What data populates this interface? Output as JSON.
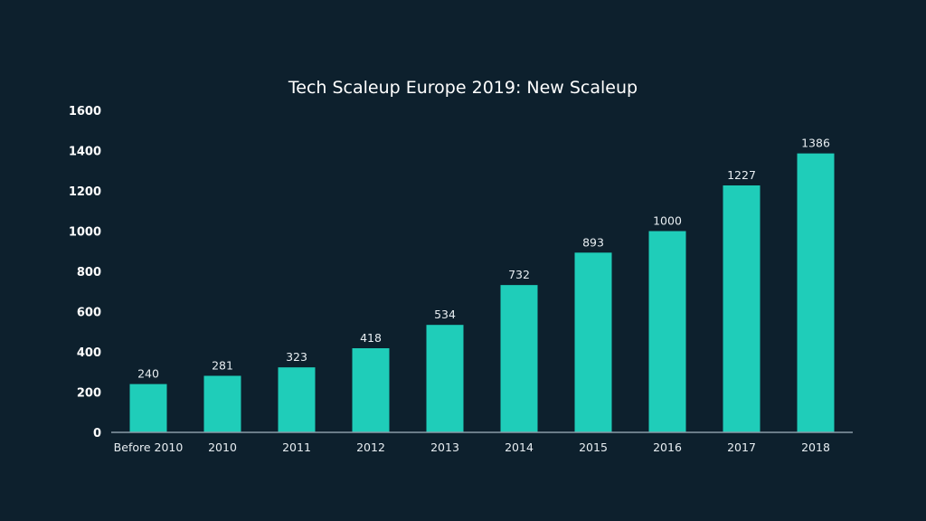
{
  "chart_data": {
    "type": "bar",
    "title": "Tech Scaleup Europe 2019: New Scaleup",
    "xlabel": "",
    "ylabel": "",
    "categories": [
      "Before 2010",
      "2010",
      "2011",
      "2012",
      "2013",
      "2014",
      "2015",
      "2016",
      "2017",
      "2018"
    ],
    "values": [
      240,
      281,
      323,
      418,
      534,
      732,
      893,
      1000,
      1227,
      1386
    ],
    "ylim": [
      0,
      1600
    ],
    "yticks": [
      0,
      200,
      400,
      600,
      800,
      1000,
      1200,
      1400,
      1600
    ],
    "grid": false,
    "legend": "none",
    "colors": {
      "background": "#0d202d",
      "bar": "#1fcdb9",
      "axis": "#8a9aa6"
    }
  }
}
